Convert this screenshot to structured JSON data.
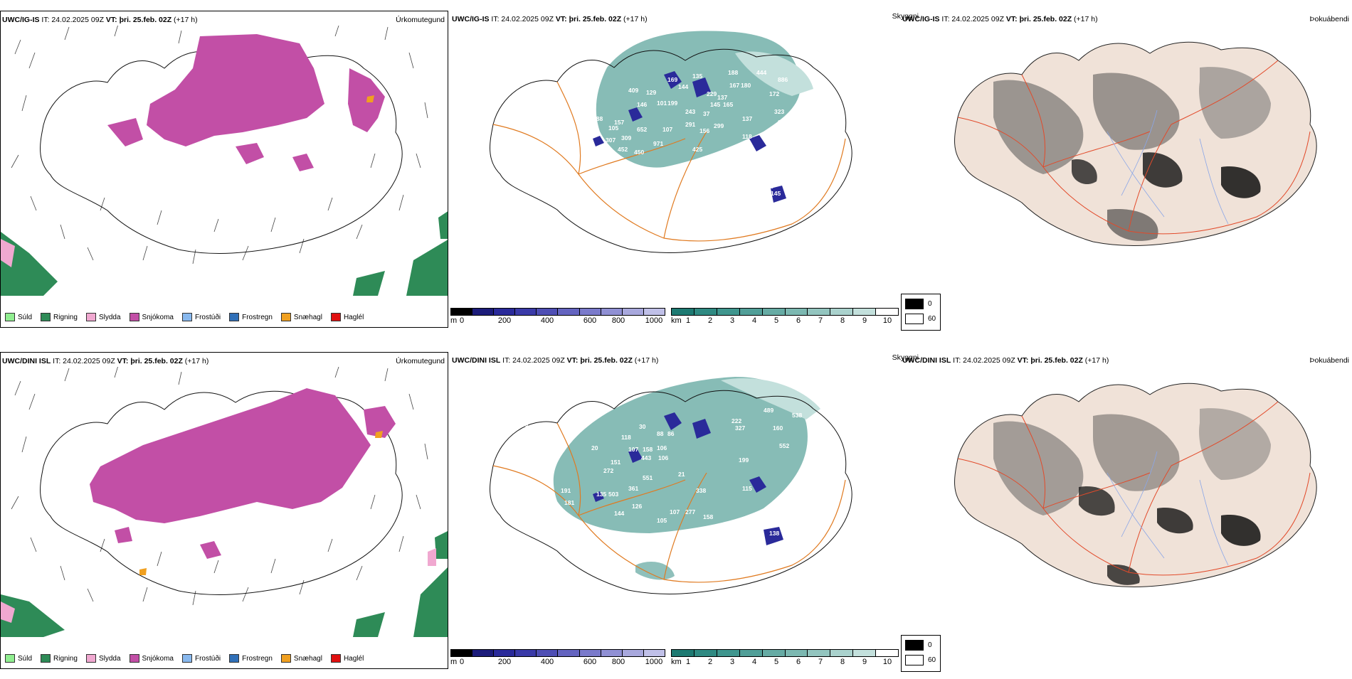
{
  "rows": [
    {
      "model": "UWC/IG-IS",
      "it": "IT: 24.02.2025 09Z",
      "vt_label": "VT:",
      "vt": "þri. 25.feb. 02Z",
      "lead": "(+17 h)",
      "panel1_title": "Úrkomutegund",
      "panel2_title": "Skyggni",
      "panel3_title": "Þokuábendi"
    },
    {
      "model": "UWC/DINI ISL",
      "it": "IT: 24.02.2025 09Z",
      "vt_label": "VT:",
      "vt": "þri. 25.feb. 02Z",
      "lead": "(+17 h)",
      "panel1_title": "Úrkomutegund",
      "panel2_title": "Skyggni",
      "panel3_title": "Þokuábendi"
    }
  ],
  "precip_legend": [
    {
      "label": "Súld",
      "color": "#90ee90"
    },
    {
      "label": "Rigning",
      "color": "#2e8b57"
    },
    {
      "label": "Slydda",
      "color": "#f0a8d0"
    },
    {
      "label": "Snjókoma",
      "color": "#c24fa6"
    },
    {
      "label": "Frostúði",
      "color": "#88b8ee"
    },
    {
      "label": "Frostregn",
      "color": "#3070b8"
    },
    {
      "label": "Snæhagl",
      "color": "#f0a020"
    },
    {
      "label": "Haglél",
      "color": "#e01010"
    }
  ],
  "height_colorbar": {
    "unit": "m",
    "ticks": [
      "0",
      "200",
      "400",
      "600",
      "800",
      "1000"
    ],
    "colors": [
      "#000000",
      "#1c1c7a",
      "#2a2a9a",
      "#3a3aa8",
      "#4e4eb4",
      "#6464c0",
      "#7a7acb",
      "#9090d4",
      "#a8a8dd",
      "#c0c0e8"
    ]
  },
  "visibility_colorbar": {
    "unit": "km",
    "ticks": [
      "1",
      "2",
      "3",
      "4",
      "5",
      "6",
      "7",
      "8",
      "9",
      "10"
    ],
    "colors": [
      "#1e7a72",
      "#2f8a82",
      "#3f968e",
      "#519f98",
      "#66aba4",
      "#7cb8b1",
      "#93c5bf",
      "#aad2cd",
      "#c3e0dc",
      "#ffffff"
    ]
  },
  "fog_legend": [
    {
      "label": "0",
      "color": "#000000"
    },
    {
      "label": "60",
      "color": "#ffffff"
    }
  ],
  "visibility_labels_top": [
    "169",
    "144",
    "135",
    "188",
    "444",
    "886",
    "409",
    "129",
    "229",
    "137",
    "167",
    "180",
    "172",
    "146",
    "101",
    "199",
    "145",
    "165",
    "323",
    "188",
    "157",
    "652",
    "107",
    "243",
    "37",
    "137",
    "941",
    "177",
    "105",
    "309",
    "291",
    "156",
    "299",
    "307",
    "971",
    "118",
    "452",
    "450",
    "425",
    "119",
    "153",
    "239",
    "129",
    "105",
    "180",
    "100",
    "145",
    "157",
    "122",
    "230"
  ],
  "visibility_labels_bottom": [
    "185",
    "409",
    "30",
    "88",
    "86",
    "222",
    "327",
    "538",
    "188",
    "489",
    "118",
    "160",
    "589",
    "20",
    "107",
    "158",
    "106",
    "552",
    "353",
    "443",
    "151",
    "106",
    "199",
    "272",
    "551",
    "21",
    "415",
    "361",
    "338",
    "115",
    "135",
    "503",
    "126",
    "107",
    "277",
    "158",
    "122",
    "191",
    "181",
    "144",
    "105",
    "138",
    "125"
  ]
}
